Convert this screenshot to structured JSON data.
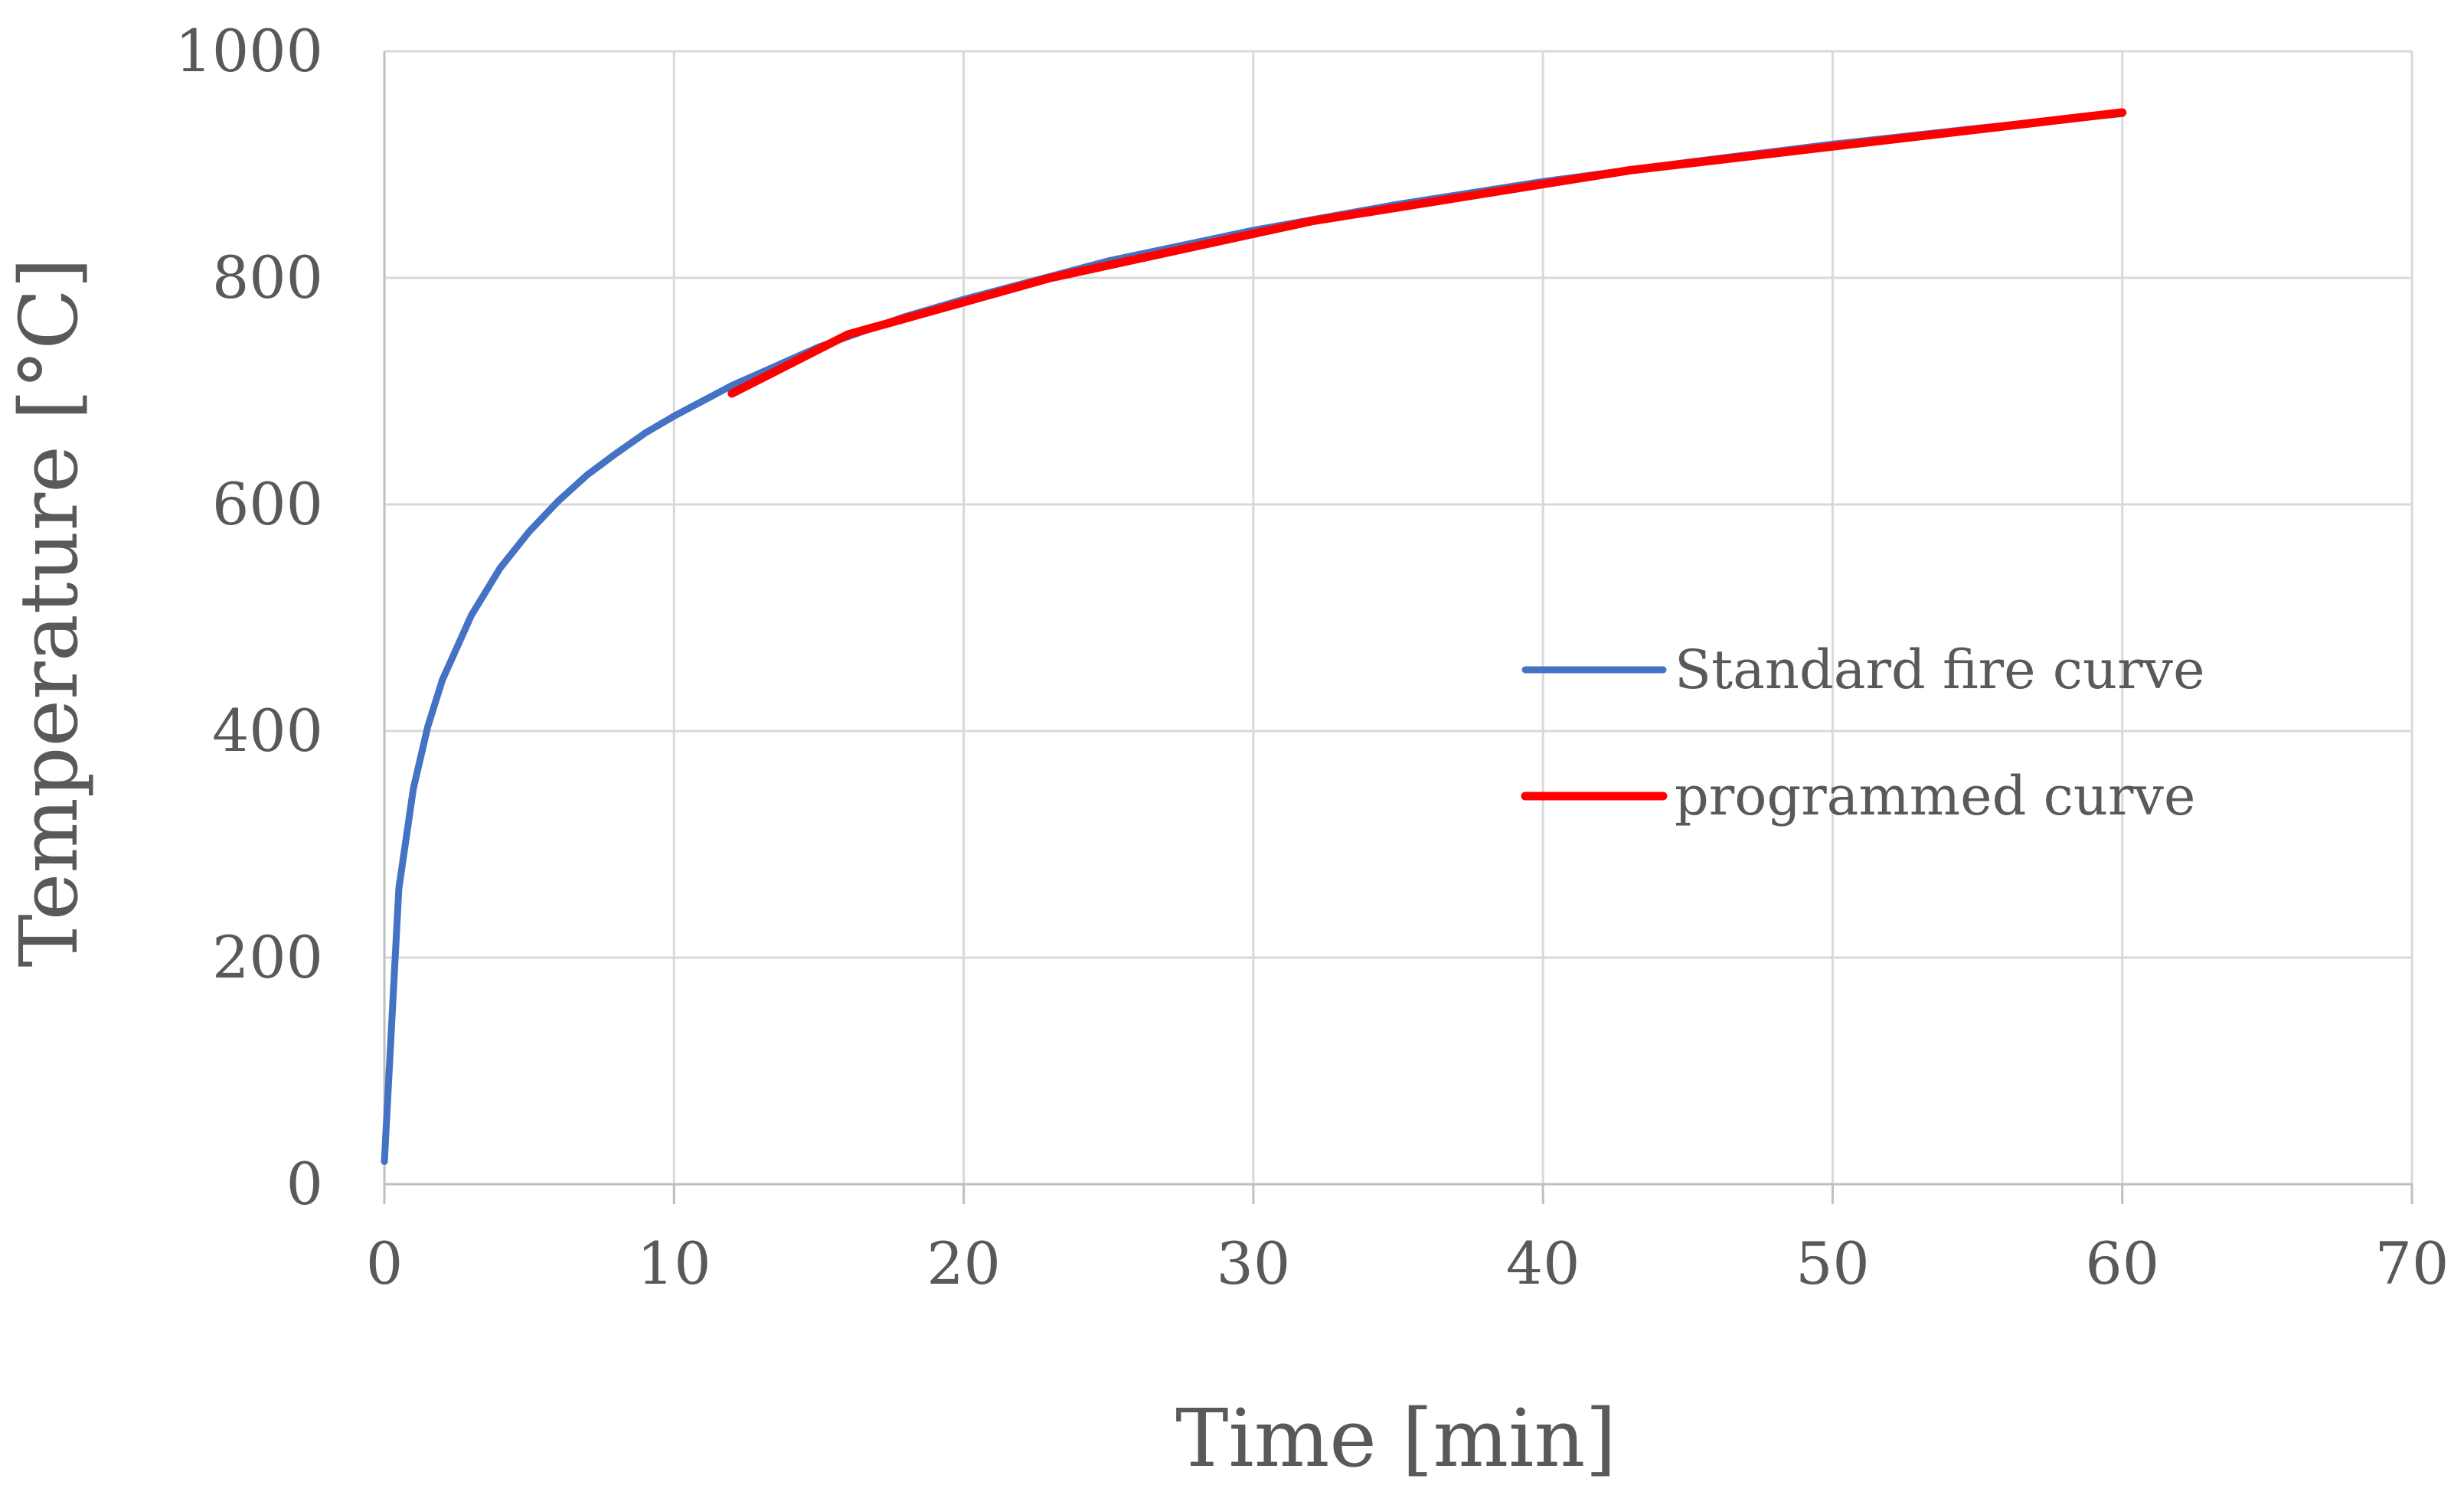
{
  "chart_data": {
    "type": "line",
    "xlabel": "Time [min]",
    "ylabel": "Temperature [°C]",
    "xlim": [
      0,
      70
    ],
    "ylim": [
      0,
      1000
    ],
    "x_ticks": [
      0,
      10,
      20,
      30,
      40,
      50,
      60,
      70
    ],
    "y_ticks": [
      0,
      200,
      400,
      600,
      800,
      1000
    ],
    "grid": true,
    "legend_position": "right",
    "series": [
      {
        "name": "Standard fire curve",
        "color": "#4472c4",
        "points": [
          [
            0,
            20
          ],
          [
            0.5,
            261
          ],
          [
            1,
            349
          ],
          [
            1.5,
            404
          ],
          [
            2,
            445
          ],
          [
            3,
            502
          ],
          [
            4,
            544
          ],
          [
            5,
            576
          ],
          [
            6,
            603
          ],
          [
            7,
            626
          ],
          [
            8,
            645
          ],
          [
            9,
            663
          ],
          [
            10,
            678
          ],
          [
            12,
            705
          ],
          [
            15,
            739
          ],
          [
            18,
            766
          ],
          [
            20,
            781
          ],
          [
            25,
            815
          ],
          [
            30,
            842
          ],
          [
            35,
            865
          ],
          [
            40,
            885
          ],
          [
            45,
            902
          ],
          [
            50,
            918
          ],
          [
            55,
            932
          ],
          [
            60,
            945
          ]
        ]
      },
      {
        "name": "programmed curve",
        "color": "#ff0000",
        "points": [
          [
            12,
            698
          ],
          [
            16,
            750
          ],
          [
            23,
            800
          ],
          [
            32,
            850
          ],
          [
            43,
            895
          ],
          [
            60,
            946
          ]
        ]
      }
    ]
  }
}
